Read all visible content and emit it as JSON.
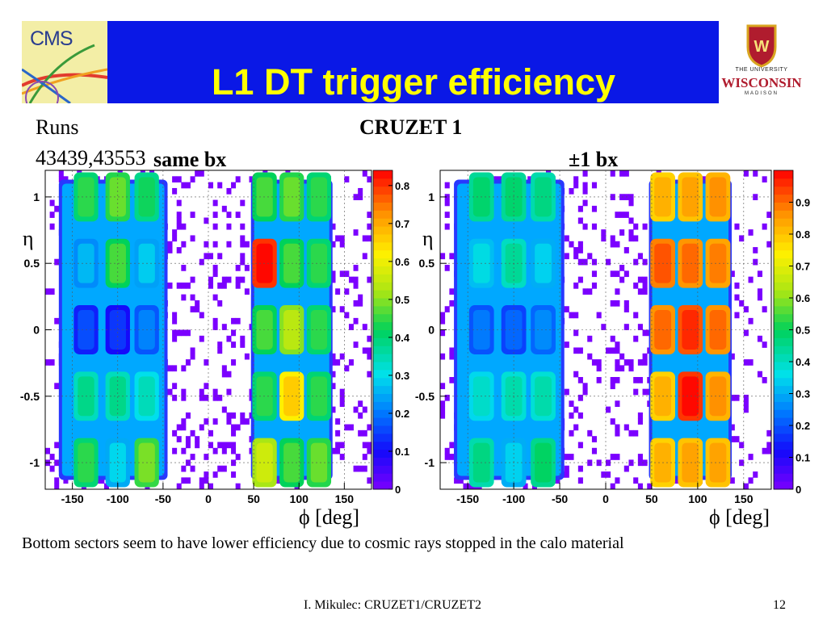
{
  "slide": {
    "title": "L1 DT trigger efficiency",
    "runs_label": "Runs",
    "runs_values": "43439,43553",
    "run_name": "CRUZET 1",
    "caption": "Bottom sectors seem to have lower efficiency due to cosmic rays stopped in the calo material",
    "footer": "I. Mikulec: CRUZET1/CRUZET2",
    "page_number": "12"
  },
  "logos": {
    "left": "CMS",
    "right_line1": "THE UNIVERSITY",
    "right_line2": "WISCONSIN",
    "right_line3": "MADISON"
  },
  "chart_data": [
    {
      "type": "heatmap",
      "title": "same bx",
      "xlabel": "ϕ [deg]",
      "ylabel": "η",
      "xlim": [
        -180,
        180
      ],
      "ylim": [
        -1.2,
        1.2
      ],
      "x_ticks": [
        -150,
        -100,
        -50,
        0,
        50,
        100,
        150
      ],
      "y_ticks": [
        -1,
        -0.5,
        0,
        0.5,
        1
      ],
      "y_tick_labels": [
        "-1",
        "-0.5",
        "0",
        "0.5",
        "1"
      ],
      "z_range": [
        0,
        0.84
      ],
      "z_ticks": [
        0,
        0.1,
        0.2,
        0.3,
        0.4,
        0.5,
        0.6,
        0.7,
        0.8
      ],
      "z_tick_labels": [
        "0",
        "0.1",
        "0.2",
        "0.3",
        "0.4",
        "0.5",
        "0.6",
        "0.7",
        "0.8"
      ],
      "rows_eta": [
        "1.0",
        "0.5",
        "0.0",
        "-0.5",
        "-1.0"
      ],
      "cols_phi": [
        -135,
        -100,
        -68,
        62,
        92,
        122
      ],
      "values": [
        [
          0.4,
          0.44,
          0.38,
          0.42,
          0.44,
          0.4
        ],
        [
          0.22,
          0.42,
          0.24,
          0.8,
          0.42,
          0.4
        ],
        [
          0.12,
          0.1,
          0.17,
          0.42,
          0.5,
          0.4
        ],
        [
          0.34,
          0.34,
          0.3,
          0.4,
          0.62,
          0.4
        ],
        [
          0.4,
          0.25,
          0.45,
          0.52,
          0.42,
          0.44
        ]
      ]
    },
    {
      "type": "heatmap",
      "title": "±1 bx",
      "xlabel": "ϕ [deg]",
      "ylabel": "η",
      "xlim": [
        -180,
        180
      ],
      "ylim": [
        -1.2,
        1.2
      ],
      "x_ticks": [
        -150,
        -100,
        -50,
        0,
        50,
        100,
        150
      ],
      "y_ticks": [
        -1,
        -0.5,
        0,
        0.5,
        1
      ],
      "y_tick_labels": [
        "-1",
        "-0.5",
        "0",
        "0.5",
        "1"
      ],
      "z_range": [
        0,
        1.0
      ],
      "z_ticks": [
        0,
        0.1,
        0.2,
        0.3,
        0.4,
        0.5,
        0.6,
        0.7,
        0.8,
        0.9
      ],
      "z_tick_labels": [
        "0",
        "0.1",
        "0.2",
        "0.3",
        "0.4",
        "0.5",
        "0.6",
        "0.7",
        "0.8",
        "0.9"
      ],
      "rows_eta": [
        "1.0",
        "0.5",
        "0.0",
        "-0.5",
        "-1.0"
      ],
      "cols_phi": [
        -135,
        -100,
        -68,
        62,
        92,
        122
      ],
      "values": [
        [
          0.44,
          0.44,
          0.42,
          0.78,
          0.8,
          0.82
        ],
        [
          0.32,
          0.4,
          0.3,
          0.88,
          0.86,
          0.84
        ],
        [
          0.2,
          0.18,
          0.22,
          0.86,
          0.92,
          0.86
        ],
        [
          0.35,
          0.38,
          0.38,
          0.78,
          0.95,
          0.82
        ],
        [
          0.42,
          0.3,
          0.45,
          0.78,
          0.8,
          0.8
        ]
      ]
    }
  ],
  "colors": {
    "header_bg": "#0a18e6",
    "title_color": "#ffff00",
    "empty_bin": "#7b00ff"
  }
}
